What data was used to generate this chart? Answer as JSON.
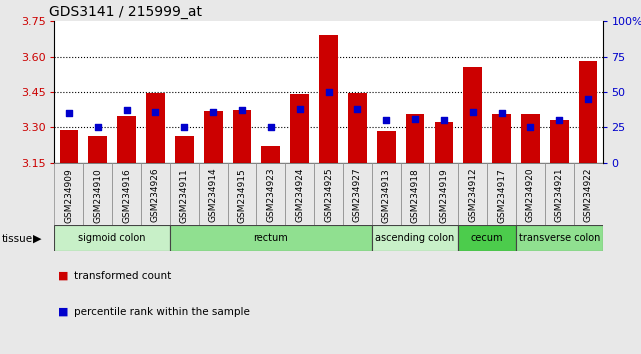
{
  "title": "GDS3141 / 215999_at",
  "samples": [
    "GSM234909",
    "GSM234910",
    "GSM234916",
    "GSM234926",
    "GSM234911",
    "GSM234914",
    "GSM234915",
    "GSM234923",
    "GSM234924",
    "GSM234925",
    "GSM234927",
    "GSM234913",
    "GSM234918",
    "GSM234919",
    "GSM234912",
    "GSM234917",
    "GSM234920",
    "GSM234921",
    "GSM234922"
  ],
  "bar_values": [
    3.29,
    3.265,
    3.35,
    3.445,
    3.265,
    3.37,
    3.375,
    3.22,
    3.44,
    3.69,
    3.445,
    3.285,
    3.355,
    3.325,
    3.555,
    3.355,
    3.355,
    3.33,
    3.58
  ],
  "percentile_values": [
    35,
    25,
    37,
    36,
    25,
    36,
    37,
    25,
    38,
    50,
    38,
    30,
    31,
    30,
    36,
    35,
    25,
    30,
    45
  ],
  "bar_color": "#cc0000",
  "dot_color": "#0000cc",
  "ylim_left": [
    3.15,
    3.75
  ],
  "ylim_right": [
    0,
    100
  ],
  "y_ticks_left": [
    3.15,
    3.3,
    3.45,
    3.6,
    3.75
  ],
  "y_ticks_right": [
    0,
    25,
    50,
    75,
    100
  ],
  "grid_lines": [
    3.3,
    3.45,
    3.6
  ],
  "tissue_groups": [
    {
      "label": "sigmoid colon",
      "start": 0,
      "end": 4,
      "color": "#c8f0c8"
    },
    {
      "label": "rectum",
      "start": 4,
      "end": 11,
      "color": "#90e090"
    },
    {
      "label": "ascending colon",
      "start": 11,
      "end": 14,
      "color": "#c8f0c8"
    },
    {
      "label": "cecum",
      "start": 14,
      "end": 16,
      "color": "#4ccc4c"
    },
    {
      "label": "transverse colon",
      "start": 16,
      "end": 19,
      "color": "#90e090"
    }
  ],
  "legend_items": [
    {
      "label": "transformed count",
      "color": "#cc0000"
    },
    {
      "label": "percentile rank within the sample",
      "color": "#0000cc"
    }
  ],
  "bg_color": "#e8e8e8",
  "plot_bg": "#ffffff",
  "left_label_color": "#cc0000",
  "right_label_color": "#0000cc"
}
